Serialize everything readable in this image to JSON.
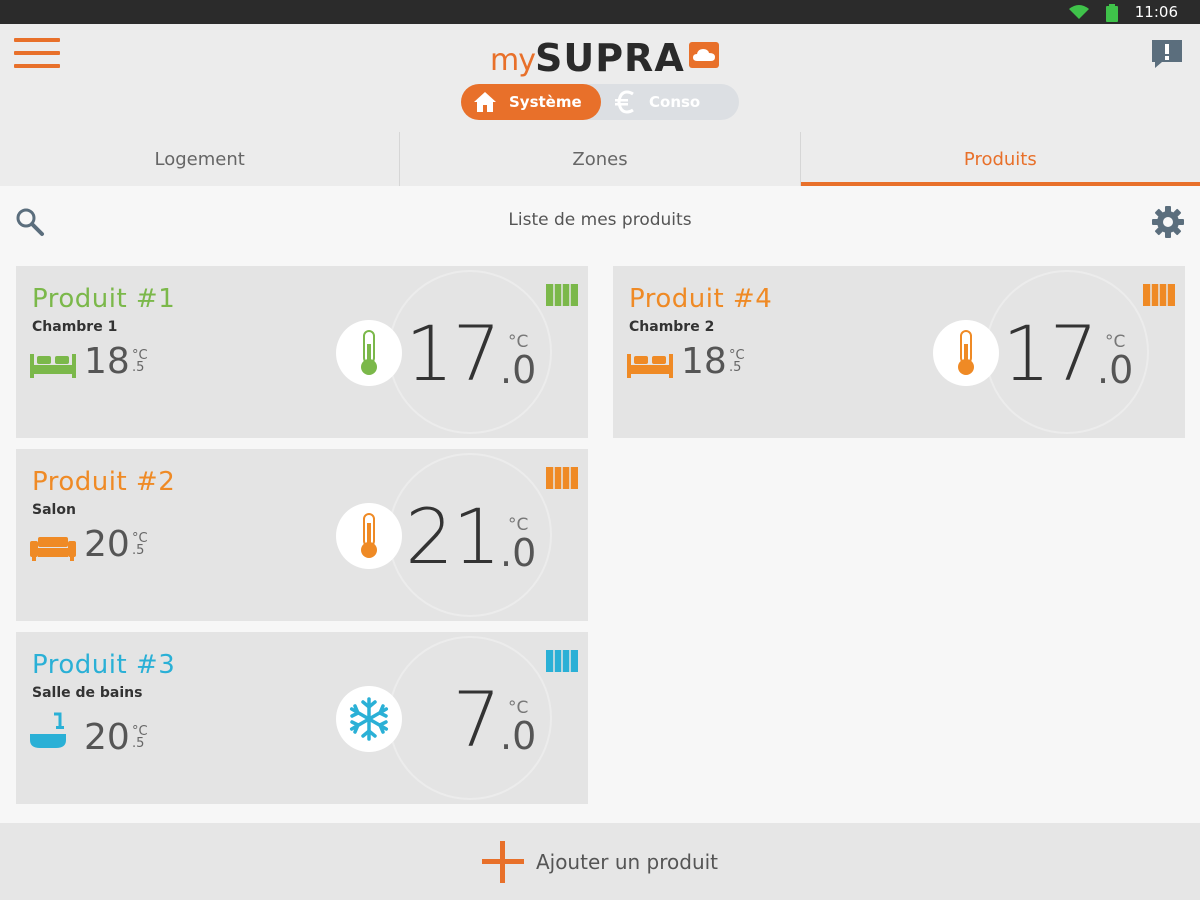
{
  "status": {
    "time": "11:06"
  },
  "header": {
    "logo_my": "my",
    "logo_brand": "SUPRA"
  },
  "mode_switch": {
    "systeme": "Système",
    "conso": "Conso"
  },
  "tabs": [
    {
      "label": "Logement",
      "active": false
    },
    {
      "label": "Zones",
      "active": false
    },
    {
      "label": "Produits",
      "active": true
    }
  ],
  "list": {
    "title": "Liste de mes produits"
  },
  "products": [
    {
      "name": "Produit #1",
      "room": "Chambre 1",
      "room_icon": "bed-icon",
      "ambient_int": "18",
      "ambient_unit": "°C",
      "ambient_dec": ".5",
      "set_int": "17",
      "set_unit": "°C",
      "set_dec": ".0",
      "mode_icon": "thermometer-icon",
      "color": "#7bb84a"
    },
    {
      "name": "Produit #2",
      "room": "Salon",
      "room_icon": "sofa-icon",
      "ambient_int": "20",
      "ambient_unit": "°C",
      "ambient_dec": ".5",
      "set_int": "21",
      "set_unit": "°C",
      "set_dec": ".0",
      "mode_icon": "thermometer-icon",
      "color": "#ef8a25"
    },
    {
      "name": "Produit #3",
      "room": "Salle de bains",
      "room_icon": "bathtub-icon",
      "ambient_int": "20",
      "ambient_unit": "°C",
      "ambient_dec": ".5",
      "set_int": "7",
      "set_unit": "°C",
      "set_dec": ".0",
      "mode_icon": "snowflake-icon",
      "color": "#2ab0d6"
    },
    {
      "name": "Produit #4",
      "room": "Chambre 2",
      "room_icon": "bed-icon",
      "ambient_int": "18",
      "ambient_unit": "°C",
      "ambient_dec": ".5",
      "set_int": "17",
      "set_unit": "°C",
      "set_dec": ".0",
      "mode_icon": "thermometer-icon",
      "color": "#ef8a25"
    }
  ],
  "footer": {
    "add_label": "Ajouter un produit"
  },
  "colors": {
    "accent": "#e8702a",
    "green": "#7bb84a",
    "orange": "#ef8a25",
    "blue": "#2ab0d6"
  }
}
